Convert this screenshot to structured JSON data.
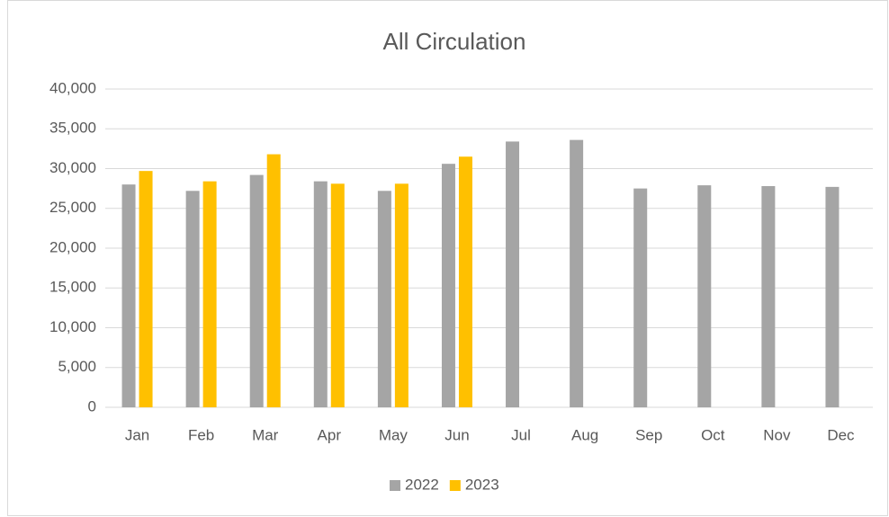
{
  "chart_data": {
    "type": "bar",
    "title": "All Circulation",
    "categories": [
      "Jan",
      "Feb",
      "Mar",
      "Apr",
      "May",
      "Jun",
      "Jul",
      "Aug",
      "Sep",
      "Oct",
      "Nov",
      "Dec"
    ],
    "series": [
      {
        "name": "2022",
        "color": "#a5a5a5",
        "values": [
          28000,
          27200,
          29200,
          28400,
          27200,
          30600,
          33400,
          33600,
          27500,
          27900,
          27800,
          27700
        ]
      },
      {
        "name": "2023",
        "color": "#ffc000",
        "values": [
          29700,
          28400,
          31800,
          28100,
          28100,
          31500,
          null,
          null,
          null,
          null,
          null,
          null
        ]
      }
    ],
    "ylim": [
      0,
      40000
    ],
    "yticks": [
      0,
      {
        "value": 5000,
        "label": "5,000"
      },
      {
        "value": 10000,
        "label": "10,000"
      },
      {
        "value": 15000,
        "label": "15,000"
      },
      {
        "value": 20000,
        "label": "20,000"
      },
      {
        "value": 25000,
        "label": "25,000"
      },
      {
        "value": 30000,
        "label": "30,000"
      },
      {
        "value": 35000,
        "label": "35,000"
      },
      {
        "value": 40000,
        "label": "40,000"
      }
    ],
    "grid": true,
    "legend": "bottom"
  }
}
